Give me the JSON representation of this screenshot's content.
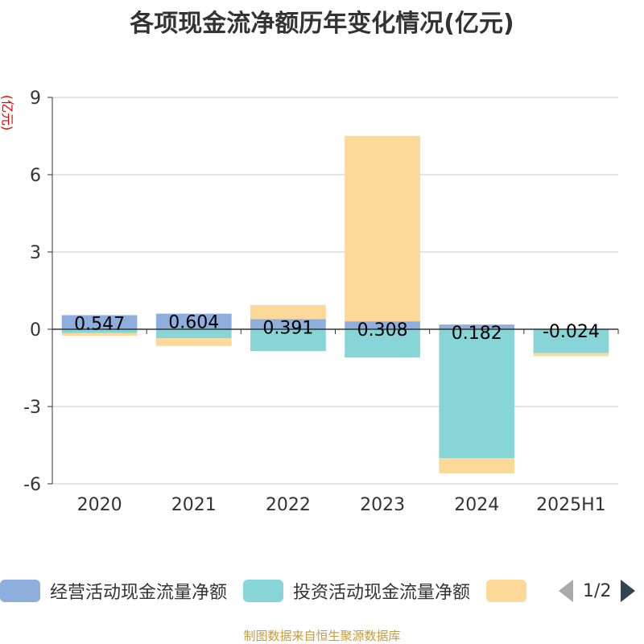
{
  "title": "各项现金流净额历年变化情况(亿元)",
  "unit_label": "(亿元)",
  "footer": "制图数据来自恒生聚源数据库",
  "legend": {
    "items": [
      {
        "label": "经营活动现金流量净额",
        "color": "#8eaede"
      },
      {
        "label": "投资活动现金流量净额",
        "color": "#88d5d8"
      },
      {
        "label": "",
        "color": "#fcd899"
      }
    ],
    "page": "1/2"
  },
  "chart_data": {
    "type": "bar",
    "stacked": true,
    "categories": [
      "2020",
      "2021",
      "2022",
      "2023",
      "2024",
      "2025H1"
    ],
    "series": [
      {
        "name": "经营活动现金流量净额",
        "color": "#8eaede",
        "values": [
          0.547,
          0.604,
          0.391,
          0.308,
          0.182,
          -0.024
        ],
        "labels": [
          "0.547",
          "0.604",
          "0.391",
          "0.308",
          "0.182",
          "-0.024"
        ]
      },
      {
        "name": "投资活动现金流量净额",
        "color": "#88d5d8",
        "values": [
          -0.15,
          -0.35,
          -0.85,
          -1.1,
          -5.0,
          -0.9
        ]
      },
      {
        "color": "#fcd899",
        "values": [
          -0.1,
          -0.3,
          0.55,
          7.2,
          -0.6,
          -0.12
        ]
      }
    ],
    "y_ticks": [
      9,
      6,
      3,
      0,
      -3,
      -6
    ],
    "ylim": [
      -6,
      9
    ],
    "grid": true
  }
}
